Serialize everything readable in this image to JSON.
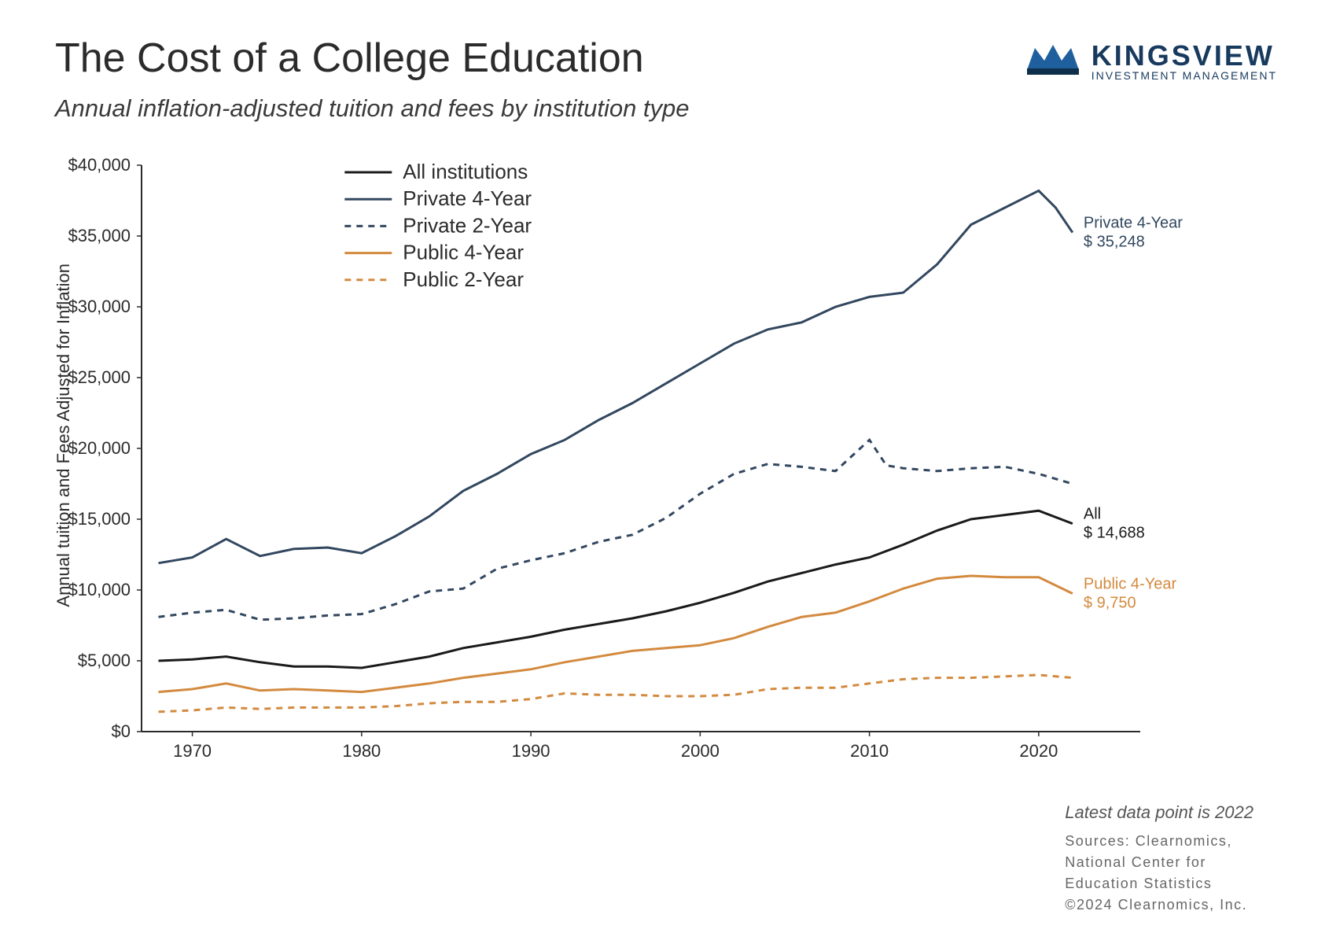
{
  "title": "The Cost of a College Education",
  "subtitle": "Annual inflation-adjusted tuition and fees by institution type",
  "logo": {
    "main": "KINGSVIEW",
    "sub": "INVESTMENT MANAGEMENT",
    "crown_fill": "#1f5f9e",
    "crown_stroke": "#0e2f4b"
  },
  "footer": {
    "latest": "Latest data point is 2022",
    "sources": "Sources: Clearnomics,\nNational Center for\nEducation Statistics\n©2024 Clearnomics, Inc."
  },
  "chart": {
    "type": "line",
    "background": "#ffffff",
    "axis_color": "#2b2b2b",
    "text_color": "#2b2b2b",
    "y_axis_label": "Annual tuition and Fees Adjusted for Inflation",
    "y_axis_label_fontsize": 22,
    "xlim": [
      1967,
      2026
    ],
    "ylim": [
      0,
      40000
    ],
    "xtick_values": [
      1970,
      1980,
      1990,
      2000,
      2010,
      2020
    ],
    "ytick_values": [
      0,
      5000,
      10000,
      15000,
      20000,
      25000,
      30000,
      35000,
      40000
    ],
    "ytick_labels": [
      "$0",
      "$5,000",
      "$10,000",
      "$15,000",
      "$20,000",
      "$25,000",
      "$30,000",
      "$35,000",
      "$40,000"
    ],
    "tick_fontsize": 22,
    "line_width": 3,
    "legend": {
      "x_year": 1979,
      "y_value": 39500,
      "fontsize": 26,
      "row_gap": 1900,
      "items": [
        {
          "key": "all",
          "label": "All institutions"
        },
        {
          "key": "priv4",
          "label": "Private 4-Year"
        },
        {
          "key": "priv2",
          "label": "Private 2-Year"
        },
        {
          "key": "pub4",
          "label": "Public 4-Year"
        },
        {
          "key": "pub2",
          "label": "Public 2-Year"
        }
      ]
    },
    "series": {
      "all": {
        "color": "#1a1a1a",
        "dash": "none",
        "end_label": "All",
        "end_value_label": "$ 14,688",
        "points": [
          [
            1968,
            5000
          ],
          [
            1970,
            5100
          ],
          [
            1972,
            5300
          ],
          [
            1974,
            4900
          ],
          [
            1976,
            4600
          ],
          [
            1978,
            4600
          ],
          [
            1980,
            4500
          ],
          [
            1982,
            4900
          ],
          [
            1984,
            5300
          ],
          [
            1986,
            5900
          ],
          [
            1988,
            6300
          ],
          [
            1990,
            6700
          ],
          [
            1992,
            7200
          ],
          [
            1994,
            7600
          ],
          [
            1996,
            8000
          ],
          [
            1998,
            8500
          ],
          [
            2000,
            9100
          ],
          [
            2002,
            9800
          ],
          [
            2004,
            10600
          ],
          [
            2006,
            11200
          ],
          [
            2008,
            11800
          ],
          [
            2010,
            12300
          ],
          [
            2012,
            13200
          ],
          [
            2014,
            14200
          ],
          [
            2016,
            15000
          ],
          [
            2018,
            15300
          ],
          [
            2020,
            15600
          ],
          [
            2022,
            14688
          ]
        ]
      },
      "priv4": {
        "color": "#32475f",
        "dash": "none",
        "end_label": "Private 4-Year",
        "end_value_label": "$ 35,248",
        "points": [
          [
            1968,
            11900
          ],
          [
            1970,
            12300
          ],
          [
            1972,
            13600
          ],
          [
            1974,
            12400
          ],
          [
            1976,
            12900
          ],
          [
            1978,
            13000
          ],
          [
            1980,
            12600
          ],
          [
            1982,
            13800
          ],
          [
            1984,
            15200
          ],
          [
            1986,
            17000
          ],
          [
            1988,
            18200
          ],
          [
            1990,
            19600
          ],
          [
            1992,
            20600
          ],
          [
            1994,
            22000
          ],
          [
            1996,
            23200
          ],
          [
            1998,
            24600
          ],
          [
            2000,
            26000
          ],
          [
            2002,
            27400
          ],
          [
            2004,
            28400
          ],
          [
            2006,
            28900
          ],
          [
            2008,
            30000
          ],
          [
            2010,
            30700
          ],
          [
            2012,
            31000
          ],
          [
            2014,
            33000
          ],
          [
            2016,
            35800
          ],
          [
            2018,
            37000
          ],
          [
            2020,
            38200
          ],
          [
            2021,
            37000
          ],
          [
            2022,
            35248
          ]
        ]
      },
      "priv2": {
        "color": "#32475f",
        "dash": "8,7",
        "end_label": "",
        "end_value_label": "",
        "points": [
          [
            1968,
            8100
          ],
          [
            1970,
            8400
          ],
          [
            1972,
            8600
          ],
          [
            1974,
            7900
          ],
          [
            1976,
            8000
          ],
          [
            1978,
            8200
          ],
          [
            1980,
            8300
          ],
          [
            1982,
            9000
          ],
          [
            1984,
            9900
          ],
          [
            1986,
            10100
          ],
          [
            1988,
            11500
          ],
          [
            1990,
            12100
          ],
          [
            1992,
            12600
          ],
          [
            1994,
            13400
          ],
          [
            1996,
            13900
          ],
          [
            1998,
            15100
          ],
          [
            2000,
            16800
          ],
          [
            2002,
            18200
          ],
          [
            2004,
            18900
          ],
          [
            2006,
            18700
          ],
          [
            2008,
            18400
          ],
          [
            2010,
            20600
          ],
          [
            2011,
            18800
          ],
          [
            2012,
            18600
          ],
          [
            2014,
            18400
          ],
          [
            2016,
            18600
          ],
          [
            2018,
            18700
          ],
          [
            2020,
            18200
          ],
          [
            2022,
            17500
          ]
        ]
      },
      "pub4": {
        "color": "#d38a3f",
        "dash": "none",
        "end_label": "Public 4-Year",
        "end_value_label": "$ 9,750",
        "points": [
          [
            1968,
            2800
          ],
          [
            1970,
            3000
          ],
          [
            1972,
            3400
          ],
          [
            1974,
            2900
          ],
          [
            1976,
            3000
          ],
          [
            1978,
            2900
          ],
          [
            1980,
            2800
          ],
          [
            1982,
            3100
          ],
          [
            1984,
            3400
          ],
          [
            1986,
            3800
          ],
          [
            1988,
            4100
          ],
          [
            1990,
            4400
          ],
          [
            1992,
            4900
          ],
          [
            1994,
            5300
          ],
          [
            1996,
            5700
          ],
          [
            1998,
            5900
          ],
          [
            2000,
            6100
          ],
          [
            2002,
            6600
          ],
          [
            2004,
            7400
          ],
          [
            2006,
            8100
          ],
          [
            2008,
            8400
          ],
          [
            2010,
            9200
          ],
          [
            2012,
            10100
          ],
          [
            2014,
            10800
          ],
          [
            2016,
            11000
          ],
          [
            2018,
            10900
          ],
          [
            2020,
            10900
          ],
          [
            2022,
            9750
          ]
        ]
      },
      "pub2": {
        "color": "#d38a3f",
        "dash": "8,7",
        "end_label": "",
        "end_value_label": "",
        "points": [
          [
            1968,
            1400
          ],
          [
            1970,
            1500
          ],
          [
            1972,
            1700
          ],
          [
            1974,
            1600
          ],
          [
            1976,
            1700
          ],
          [
            1978,
            1700
          ],
          [
            1980,
            1700
          ],
          [
            1982,
            1800
          ],
          [
            1984,
            2000
          ],
          [
            1986,
            2100
          ],
          [
            1988,
            2100
          ],
          [
            1990,
            2300
          ],
          [
            1992,
            2700
          ],
          [
            1994,
            2600
          ],
          [
            1996,
            2600
          ],
          [
            1998,
            2500
          ],
          [
            2000,
            2500
          ],
          [
            2002,
            2600
          ],
          [
            2004,
            3000
          ],
          [
            2006,
            3100
          ],
          [
            2008,
            3100
          ],
          [
            2010,
            3400
          ],
          [
            2012,
            3700
          ],
          [
            2014,
            3800
          ],
          [
            2016,
            3800
          ],
          [
            2018,
            3900
          ],
          [
            2020,
            4000
          ],
          [
            2022,
            3800
          ]
        ]
      }
    }
  }
}
